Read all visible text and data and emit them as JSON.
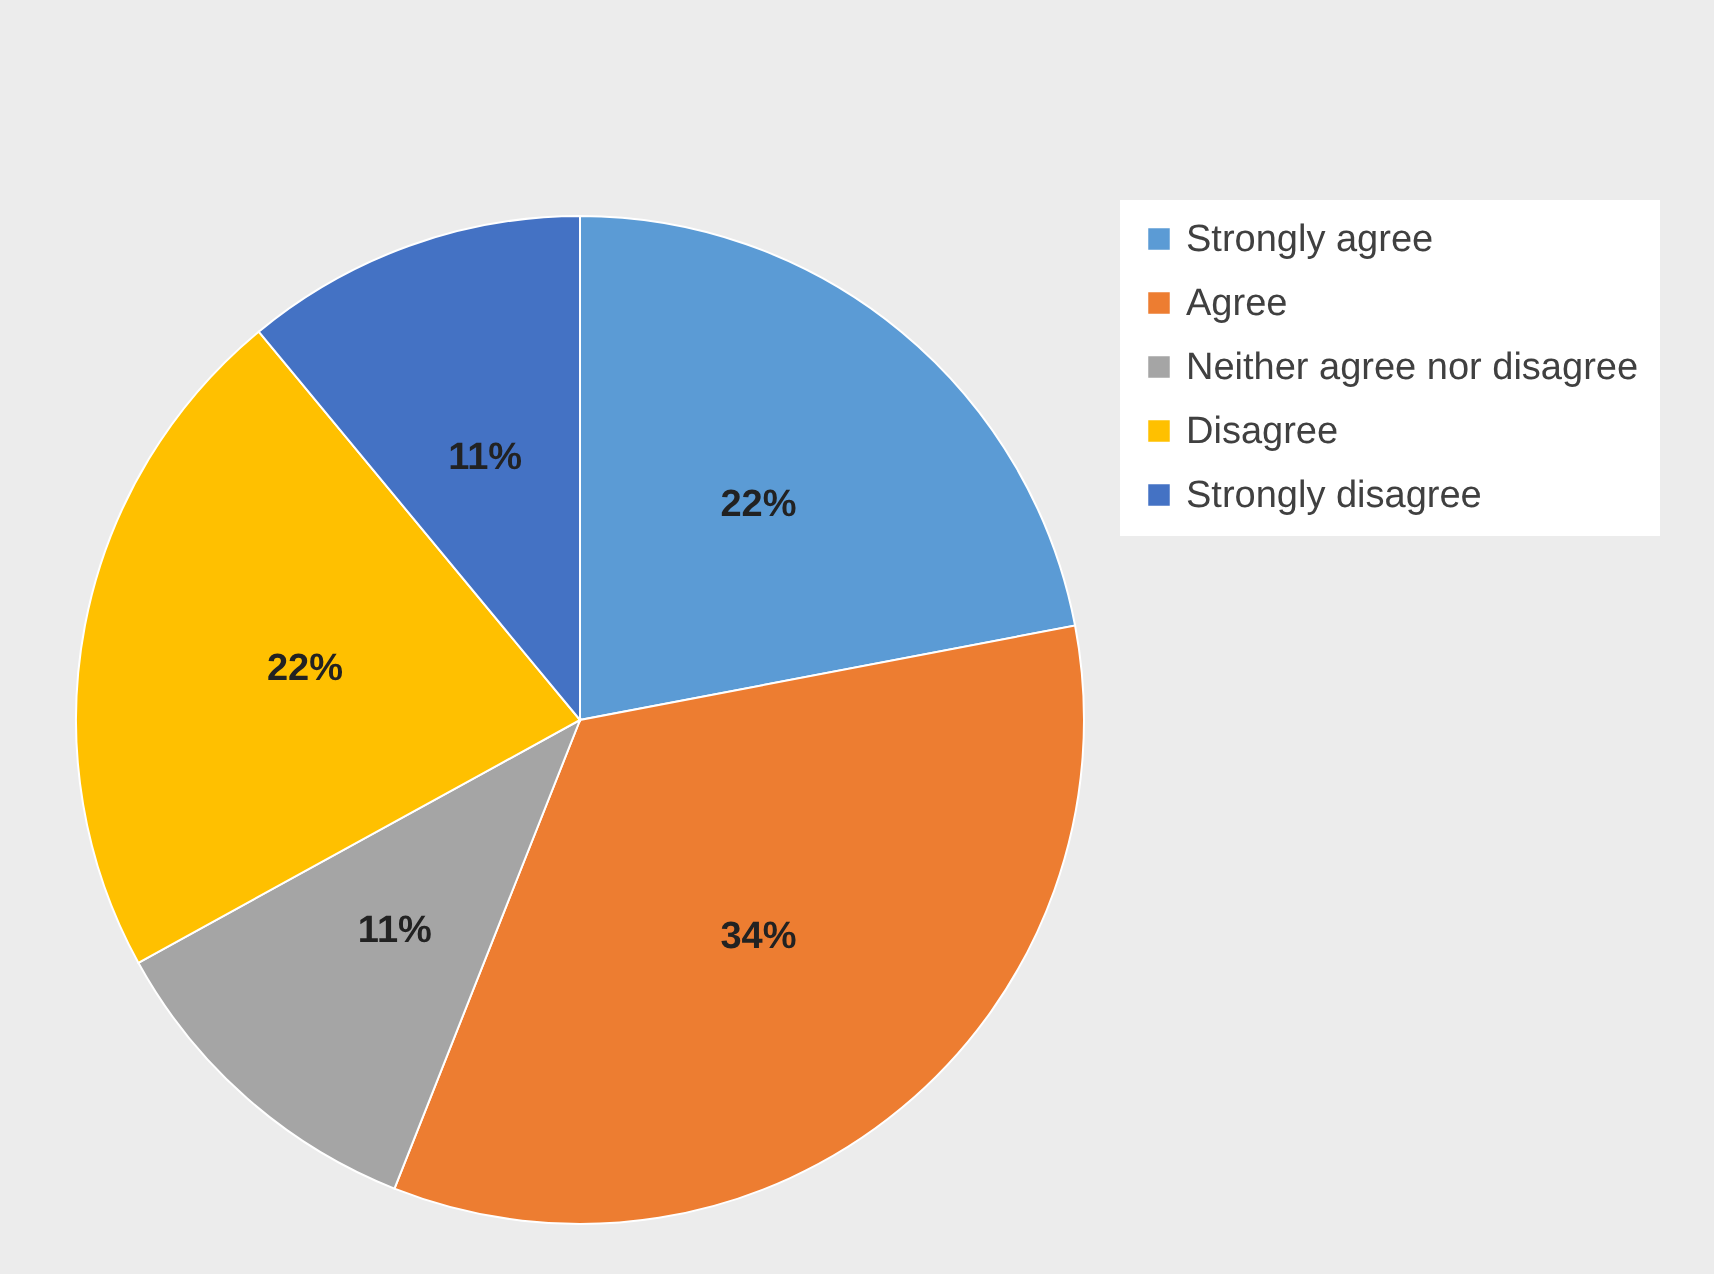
{
  "chart_data": {
    "type": "pie",
    "categories": [
      "Strongly agree",
      "Agree",
      "Neither agree nor disagree",
      "Disagree",
      "Strongly disagree"
    ],
    "values": [
      22,
      34,
      11,
      22,
      11
    ],
    "colors": [
      "#5b9bd5",
      "#ed7d31",
      "#a5a5a5",
      "#ffc000",
      "#4472c4"
    ],
    "value_labels": [
      "22%",
      "34%",
      "11%",
      "22%",
      "11%"
    ],
    "legend": "right"
  }
}
